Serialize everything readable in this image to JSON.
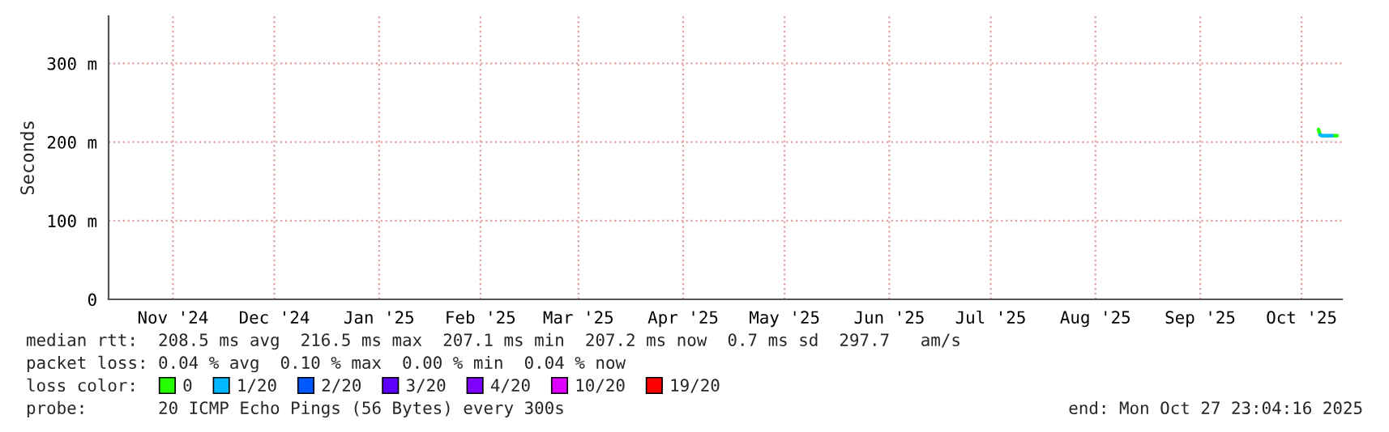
{
  "chart_data": {
    "type": "line",
    "ylabel": "Seconds",
    "x": [
      "2025-10-21T00:00",
      "2025-10-21T12:00",
      "2025-10-22T00:00",
      "2025-10-23T00:00",
      "2025-10-24T00:00",
      "2025-10-25T00:00",
      "2025-10-26T00:00",
      "2025-10-26T12:00"
    ],
    "series": [
      {
        "name": "0",
        "color": "#26ff00",
        "values": [
          216,
          209,
          null,
          null,
          null,
          208,
          208,
          208
        ]
      },
      {
        "name": "1/20",
        "color": "#00b8ff",
        "values": [
          null,
          209,
          208,
          208,
          208,
          208,
          null,
          null
        ]
      },
      {
        "name": "2/20",
        "color": "#0059ff",
        "values": [
          null,
          null,
          null,
          null,
          null,
          null,
          null,
          null
        ]
      },
      {
        "name": "3/20",
        "color": "#5e00ff",
        "values": [
          null,
          null,
          null,
          null,
          null,
          null,
          null,
          null
        ]
      },
      {
        "name": "4/20",
        "color": "#7e00ff",
        "values": [
          null,
          null,
          null,
          null,
          null,
          null,
          null,
          null
        ]
      },
      {
        "name": "10/20",
        "color": "#dd00ff",
        "values": [
          null,
          null,
          null,
          null,
          null,
          null,
          null,
          null
        ]
      },
      {
        "name": "19/20",
        "color": "#ff0000",
        "values": [
          null,
          null,
          null,
          null,
          null,
          null,
          null,
          null
        ]
      }
    ],
    "legend_title": "loss color:",
    "legend": "bottom",
    "xlim": [
      "2024-10-27T23:04",
      "2025-10-27T23:04"
    ],
    "xticks": [
      {
        "value": "2024-11-16",
        "label": "Nov '24"
      },
      {
        "value": "2024-12-16",
        "label": "Dec '24"
      },
      {
        "value": "2025-01-16",
        "label": "Jan '25"
      },
      {
        "value": "2025-02-15",
        "label": "Feb '25"
      },
      {
        "value": "2025-03-16",
        "label": "Mar '25"
      },
      {
        "value": "2025-04-16",
        "label": "Apr '25"
      },
      {
        "value": "2025-05-16",
        "label": "May '25"
      },
      {
        "value": "2025-06-16",
        "label": "Jun '25"
      },
      {
        "value": "2025-07-16",
        "label": "Jul '25"
      },
      {
        "value": "2025-08-16",
        "label": "Aug '25"
      },
      {
        "value": "2025-09-16",
        "label": "Sep '25"
      },
      {
        "value": "2025-10-16",
        "label": "Oct '25"
      }
    ],
    "ylim": [
      0,
      360
    ],
    "yticks": [
      0,
      {
        "value": 100,
        "label": "100 m"
      },
      {
        "value": 200,
        "label": "200 m"
      },
      {
        "value": 300,
        "label": "300 m"
      }
    ],
    "grid": true,
    "marker": "none",
    "line_style": "solid",
    "annotations": [
      "median rtt:  208.5 ms avg  216.5 ms max  207.1 ms min  207.2 ms now  0.7 ms sd  297.7   am/s",
      "packet loss: 0.04 % avg  0.10 % max  0.00 % min  0.04 % now",
      "probe:       20 ICMP Echo Pings (56 Bytes) every 300s",
      "end: Mon Oct 27 23:04:16 2025"
    ]
  }
}
